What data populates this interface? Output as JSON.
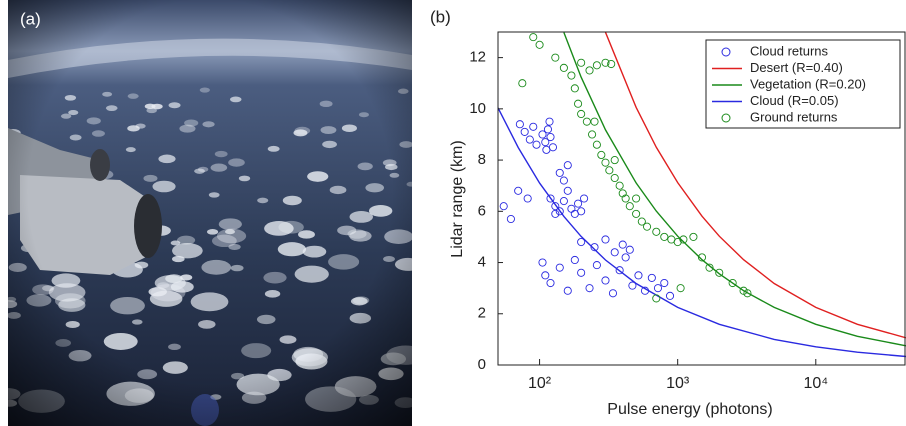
{
  "photo": {
    "label": "(a)"
  },
  "chart_data": {
    "type": "scatter",
    "title": "(b)",
    "x_label": "Pulse energy (photons)",
    "y_label": "Lidar range (km)",
    "xscale": "log",
    "xlim": [
      50,
      45000
    ],
    "ylim": [
      0,
      13
    ],
    "xticks": [
      {
        "value": 100,
        "label": "10²"
      },
      {
        "value": 1000,
        "label": "10³"
      },
      {
        "value": 10000,
        "label": "10⁴"
      }
    ],
    "yticks": [
      0,
      2,
      4,
      6,
      8,
      10,
      12
    ],
    "legend": "top-right",
    "series": [
      {
        "name": "Cloud returns",
        "mode": "markers",
        "color": "#2a2ae0",
        "x": [
          72,
          78,
          85,
          90,
          95,
          105,
          110,
          115,
          120,
          125,
          112,
          118,
          62,
          70,
          82,
          55,
          120,
          130,
          140,
          150,
          160,
          170,
          180,
          190,
          200,
          210,
          150,
          140,
          160,
          130,
          105,
          110,
          120,
          140,
          160,
          180,
          200,
          230,
          260,
          300,
          340,
          380,
          420,
          470,
          520,
          580,
          650,
          720,
          800,
          880,
          250,
          300,
          350,
          400,
          450,
          200
        ],
        "y": [
          9.4,
          9.1,
          8.8,
          9.3,
          8.6,
          9.0,
          8.7,
          9.2,
          8.9,
          8.5,
          8.4,
          9.5,
          5.7,
          6.8,
          6.5,
          6.2,
          6.5,
          6.2,
          6.0,
          6.4,
          6.8,
          6.1,
          5.9,
          6.3,
          6.0,
          6.5,
          7.2,
          7.5,
          7.8,
          5.9,
          4.0,
          3.5,
          3.2,
          3.8,
          2.9,
          4.1,
          3.6,
          3.0,
          3.9,
          3.3,
          2.8,
          3.7,
          4.2,
          3.1,
          3.5,
          2.9,
          3.4,
          3.0,
          3.2,
          2.7,
          4.6,
          4.9,
          4.4,
          4.7,
          4.5,
          4.8
        ]
      },
      {
        "name": "Desert (R=0.40)",
        "mode": "line",
        "color": "#e02020",
        "x": [
          300,
          500,
          700,
          1000,
          1500,
          2000,
          3000,
          5000,
          10000,
          20000,
          45000
        ],
        "y": [
          12.99,
          10.06,
          8.5,
          7.12,
          5.81,
          5.03,
          4.11,
          3.18,
          2.25,
          1.59,
          1.06
        ]
      },
      {
        "name": "Vegetation (R=0.20)",
        "mode": "line",
        "color": "#1a8a1a",
        "x": [
          150,
          200,
          300,
          500,
          700,
          1000,
          1500,
          2000,
          3000,
          5000,
          10000,
          20000,
          45000
        ],
        "y": [
          12.98,
          11.24,
          9.18,
          7.11,
          6.01,
          5.03,
          4.11,
          3.56,
          2.9,
          2.25,
          1.59,
          1.12,
          0.75
        ]
      },
      {
        "name": "Cloud (R=0.05)",
        "mode": "line",
        "color": "#2a2ae0",
        "x": [
          50,
          70,
          100,
          150,
          200,
          300,
          500,
          1000,
          2000,
          5000,
          10000,
          20000,
          45000
        ],
        "y": [
          10.04,
          8.49,
          7.1,
          5.8,
          5.02,
          4.1,
          3.18,
          2.25,
          1.59,
          1.0,
          0.71,
          0.5,
          0.33
        ]
      },
      {
        "name": "Ground returns",
        "mode": "markers",
        "color": "#1a8a1a",
        "x": [
          90,
          100,
          75,
          130,
          150,
          170,
          200,
          230,
          260,
          300,
          330,
          180,
          190,
          200,
          220,
          240,
          260,
          280,
          300,
          320,
          350,
          380,
          400,
          420,
          450,
          500,
          550,
          600,
          700,
          800,
          900,
          1000,
          1100,
          1300,
          1500,
          1700,
          2000,
          2500,
          3000,
          3200,
          700,
          1050,
          250,
          350,
          500
        ],
        "y": [
          12.8,
          12.5,
          11,
          12,
          11.6,
          11.3,
          11.8,
          11.5,
          11.7,
          11.8,
          11.75,
          10.8,
          10.2,
          9.8,
          9.5,
          9.0,
          8.6,
          8.2,
          7.9,
          7.6,
          7.3,
          7.0,
          6.7,
          6.5,
          6.2,
          5.9,
          5.6,
          5.4,
          5.2,
          5.0,
          4.9,
          4.8,
          4.9,
          5.0,
          4.2,
          3.8,
          3.6,
          3.2,
          2.9,
          2.8,
          2.6,
          3.0,
          9.5,
          8.0,
          6.5
        ]
      }
    ]
  }
}
